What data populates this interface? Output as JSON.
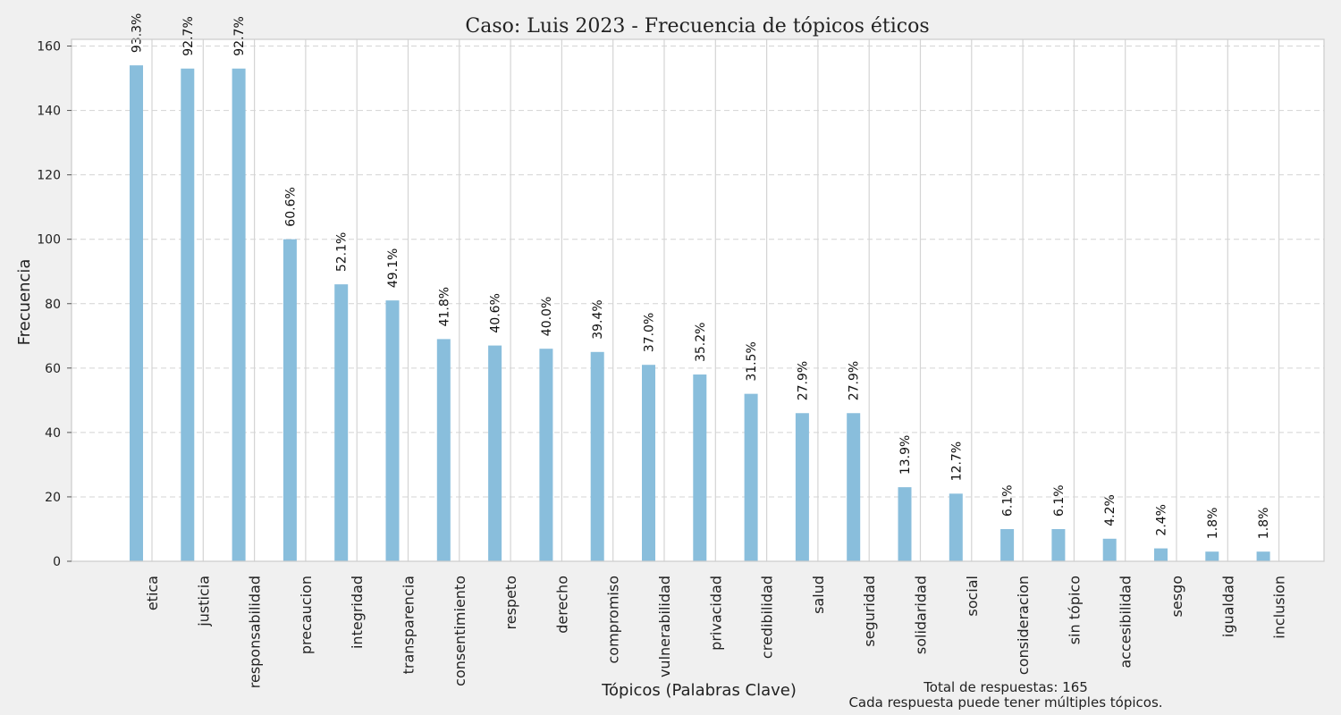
{
  "chart_data": {
    "type": "bar",
    "title": "Caso: Luis 2023 - Frecuencia de tópicos éticos",
    "xlabel": "Tópicos (Palabras Clave)",
    "ylabel": "Frecuencia",
    "ylim": [
      0,
      162
    ],
    "yticks": [
      0,
      20,
      40,
      60,
      80,
      100,
      120,
      140,
      160
    ],
    "grid": true,
    "categories": [
      "etica",
      "justicia",
      "responsabilidad",
      "precaucion",
      "integridad",
      "transparencia",
      "consentimiento",
      "respeto",
      "derecho",
      "compromiso",
      "vulnerabilidad",
      "privacidad",
      "credibilidad",
      "salud",
      "seguridad",
      "solidaridad",
      "social",
      "consideracion",
      "sin tópico",
      "accesibilidad",
      "sesgo",
      "igualdad",
      "inclusion"
    ],
    "values": [
      154,
      153,
      153,
      100,
      86,
      81,
      69,
      67,
      66,
      65,
      61,
      58,
      52,
      46,
      46,
      23,
      21,
      10,
      10,
      7,
      4,
      3,
      3
    ],
    "data_labels": [
      "93.3%",
      "92.7%",
      "92.7%",
      "60.6%",
      "52.1%",
      "49.1%",
      "41.8%",
      "40.6%",
      "40.0%",
      "39.4%",
      "37.0%",
      "35.2%",
      "31.5%",
      "27.9%",
      "27.9%",
      "13.9%",
      "12.7%",
      "6.1%",
      "6.1%",
      "4.2%",
      "2.4%",
      "1.8%",
      "1.8%"
    ],
    "colors": {
      "bar": "#89bedc",
      "grid": "#d4d4d4",
      "axis": "#cccccc",
      "background": "#f0f0f0",
      "plot": "#ffffff"
    }
  },
  "annotation": {
    "line1": "Total de respuestas: 165",
    "line2": "Cada respuesta puede tener múltiples tópicos."
  }
}
